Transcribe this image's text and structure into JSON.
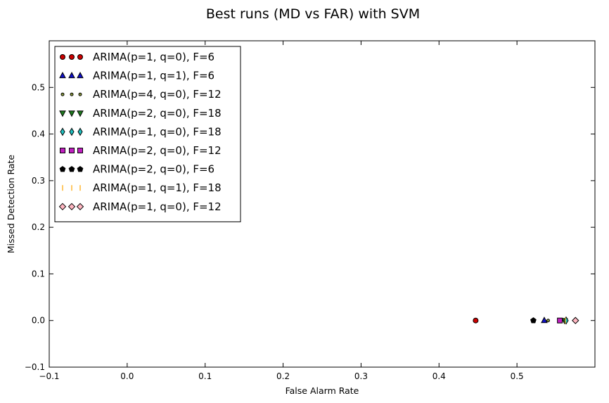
{
  "chart_data": {
    "type": "scatter",
    "title": "Best runs (MD vs FAR) with SVM",
    "xlabel": "False Alarm Rate",
    "ylabel": "Missed Detection Rate",
    "xlim": [
      -0.1,
      0.6
    ],
    "ylim": [
      -0.1,
      0.6
    ],
    "xticks": [
      -0.1,
      0.0,
      0.1,
      0.2,
      0.3,
      0.4,
      0.5
    ],
    "xtick_labels": [
      "−0.1",
      "0.0",
      "0.1",
      "0.2",
      "0.3",
      "0.4",
      "0.5"
    ],
    "yticks": [
      -0.1,
      0.0,
      0.1,
      0.2,
      0.3,
      0.4,
      0.5
    ],
    "ytick_labels": [
      "−0.1",
      "0.0",
      "0.1",
      "0.2",
      "0.3",
      "0.4",
      "0.5"
    ],
    "grid": false,
    "legend_position": "top-left",
    "series": [
      {
        "name": "ARIMA(p=1, q=0), F=6",
        "marker": "circle",
        "color": "#cc0000",
        "x": [
          0.447
        ],
        "y": [
          0.0
        ]
      },
      {
        "name": "ARIMA(p=1, q=1), F=6",
        "marker": "triangle-up",
        "color": "#1010c8",
        "x": [
          0.535
        ],
        "y": [
          0.0
        ]
      },
      {
        "name": "ARIMA(p=4, q=0), F=12",
        "marker": "small-circle",
        "color": "#8a9a3c",
        "x": [
          0.54
        ],
        "y": [
          0.0
        ]
      },
      {
        "name": "ARIMA(p=2, q=0), F=18",
        "marker": "triangle-down",
        "color": "#1e7a1e",
        "x": [
          0.561
        ],
        "y": [
          0.0
        ]
      },
      {
        "name": "ARIMA(p=1, q=0), F=18",
        "marker": "thin-diamond",
        "color": "#20c0c0",
        "x": [
          0.563
        ],
        "y": [
          0.0
        ]
      },
      {
        "name": "ARIMA(p=2, q=0), F=12",
        "marker": "square",
        "color": "#c020c0",
        "x": [
          0.555
        ],
        "y": [
          0.0
        ]
      },
      {
        "name": "ARIMA(p=2, q=0), F=6",
        "marker": "pentagon",
        "color": "#000000",
        "x": [
          0.521
        ],
        "y": [
          0.0
        ]
      },
      {
        "name": "ARIMA(p=1, q=1), F=18",
        "marker": "vline",
        "color": "#ffa500",
        "x": [
          0.562
        ],
        "y": [
          0.0
        ]
      },
      {
        "name": "ARIMA(p=1, q=0), F=12",
        "marker": "diamond",
        "color": "#ffb6c1",
        "x": [
          0.575
        ],
        "y": [
          0.0
        ]
      }
    ]
  }
}
